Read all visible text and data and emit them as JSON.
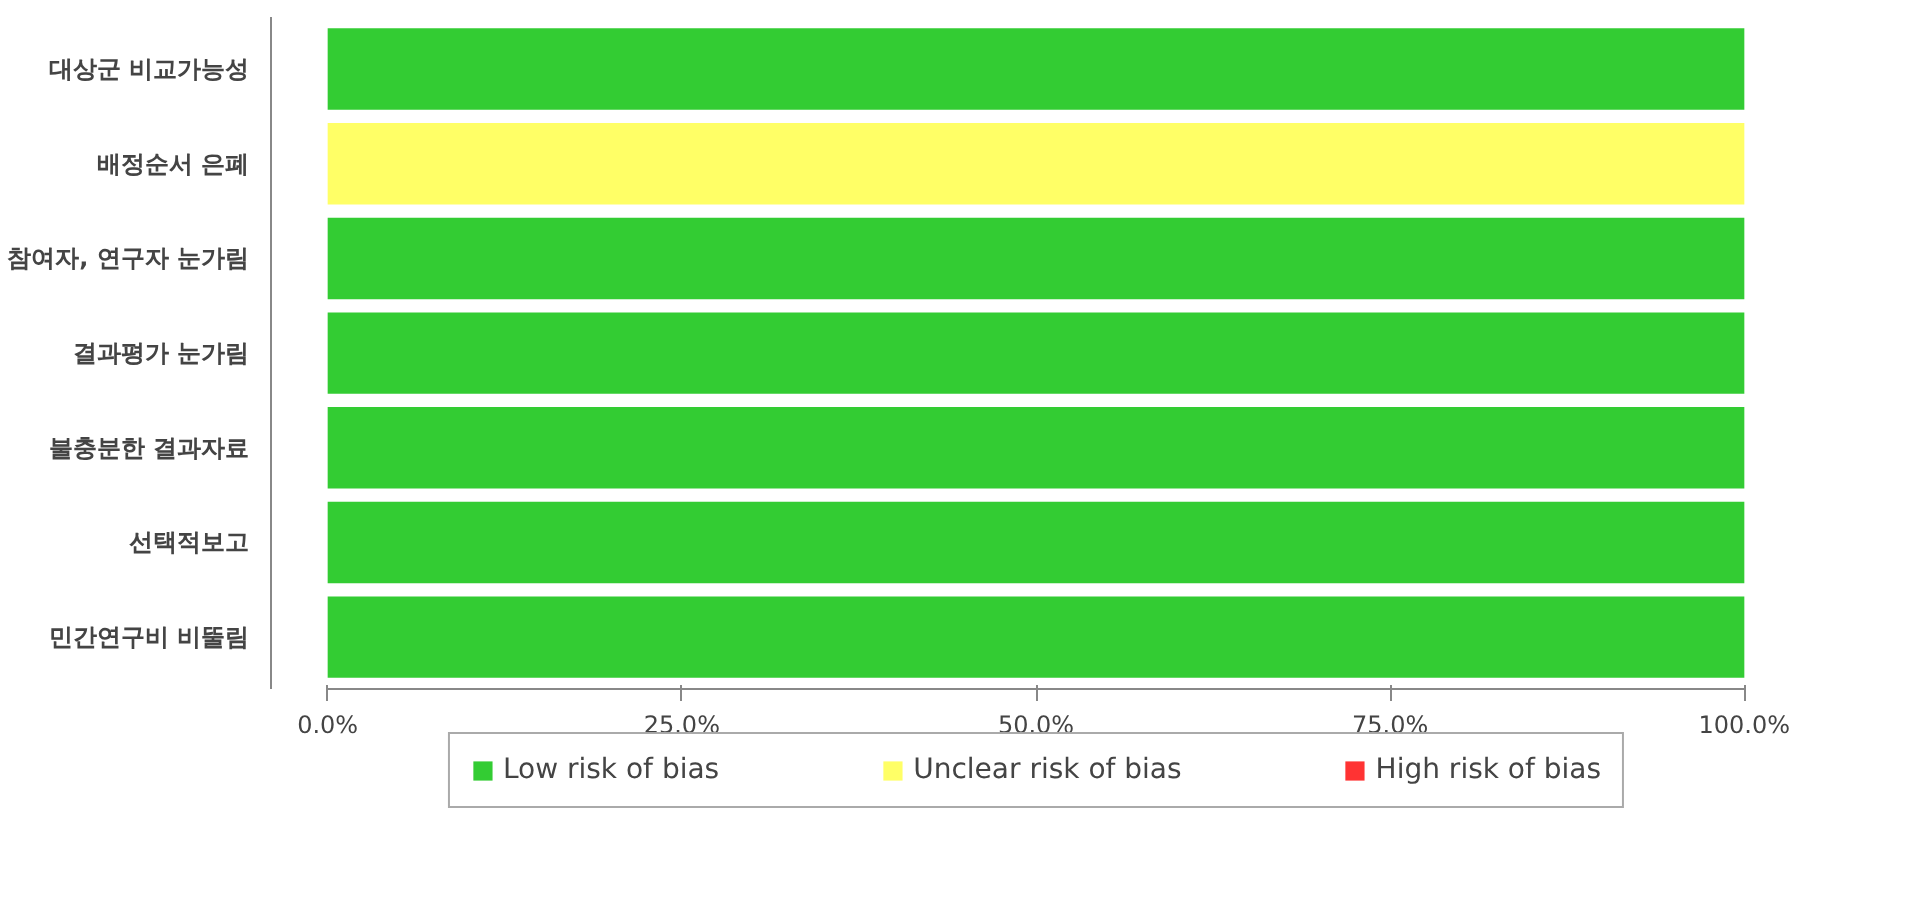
{
  "chart_data": {
    "type": "bar",
    "orientation": "horizontal",
    "stacked": true,
    "categories": [
      "대상군 비교가능성",
      "배정순서 은폐",
      "참여자, 연구자 눈가림",
      "결과평가 눈가림",
      "불충분한 결과자료",
      "선택적보고",
      "민간연구비 비뚤림"
    ],
    "series": [
      {
        "name": "Low risk of bias",
        "color": "#33cc33",
        "values": [
          100,
          0,
          100,
          100,
          100,
          100,
          100
        ]
      },
      {
        "name": "Unclear risk of bias",
        "color": "#ffff66",
        "values": [
          0,
          100,
          0,
          0,
          0,
          0,
          0
        ]
      },
      {
        "name": "High risk of bias",
        "color": "#ff3333",
        "values": [
          0,
          0,
          0,
          0,
          0,
          0,
          0
        ]
      }
    ],
    "xlim": [
      0,
      100
    ],
    "xticks": [
      {
        "value": 0,
        "label": "0.0%"
      },
      {
        "value": 25,
        "label": "25.0%"
      },
      {
        "value": 50,
        "label": "50.0%"
      },
      {
        "value": 75,
        "label": "75.0%"
      },
      {
        "value": 100,
        "label": "100.0%"
      }
    ],
    "grid": false,
    "legend": "bottom"
  }
}
